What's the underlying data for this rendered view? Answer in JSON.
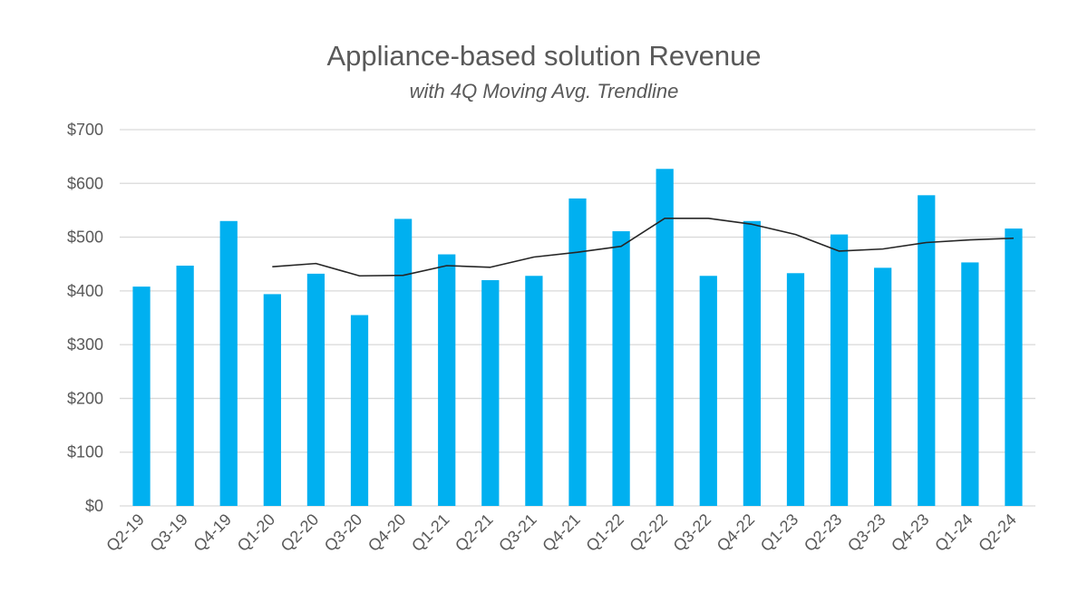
{
  "chart_data": {
    "type": "bar",
    "title": "Appliance-based solution Revenue",
    "subtitle": "with 4Q Moving Avg. Trendline",
    "categories": [
      "Q2-19",
      "Q3-19",
      "Q4-19",
      "Q1-20",
      "Q2-20",
      "Q3-20",
      "Q4-20",
      "Q1-21",
      "Q2-21",
      "Q3-21",
      "Q4-21",
      "Q1-22",
      "Q2-22",
      "Q3-22",
      "Q4-22",
      "Q1-23",
      "Q2-23",
      "Q3-23",
      "Q4-23",
      "Q1-24",
      "Q2-24"
    ],
    "series": [
      {
        "type": "bar",
        "color": "#00b0f0",
        "values": [
          408,
          447,
          530,
          394,
          432,
          355,
          534,
          468,
          420,
          428,
          572,
          511,
          627,
          428,
          530,
          433,
          505,
          443,
          578,
          453,
          516
        ]
      },
      {
        "type": "line",
        "color": "#262626",
        "values": [
          null,
          null,
          null,
          445,
          451,
          428,
          429,
          447,
          444,
          463,
          472,
          483,
          535,
          535,
          524,
          505,
          474,
          478,
          490,
          495,
          498
        ]
      }
    ],
    "ylim": [
      0,
      700
    ],
    "yticks": [
      "$0",
      "$100",
      "$200",
      "$300",
      "$400",
      "$500",
      "$600",
      "$700"
    ],
    "grid": true,
    "legend": "none"
  }
}
